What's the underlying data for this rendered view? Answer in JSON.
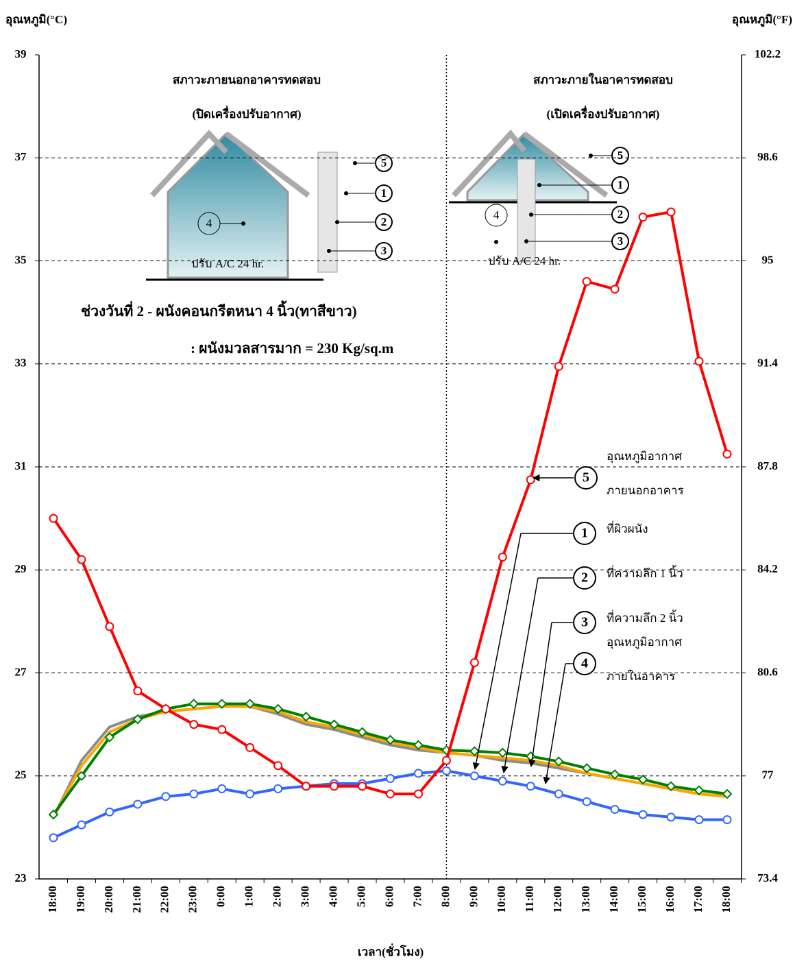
{
  "chart_data": {
    "type": "line",
    "y_label": "อุณหภูมิ(°C)",
    "y2_label": "อุณหภูมิ(°F)",
    "x_label": "เวลา(ชั่วโมง)",
    "categories": [
      "18:00",
      "19:00",
      "20:00",
      "21:00",
      "22:00",
      "23:00",
      "0:00",
      "1:00",
      "2:00",
      "3:00",
      "4:00",
      "5:00",
      "6:00",
      "7:00",
      "8:00",
      "9:00",
      "10:00",
      "11:00",
      "12:00",
      "13:00",
      "14:00",
      "15:00",
      "16:00",
      "17:00",
      "18:00"
    ],
    "ylim": [
      23,
      39
    ],
    "yticks": [
      23,
      25,
      27,
      29,
      31,
      33,
      35,
      37,
      39
    ],
    "y2lim": [
      73.4,
      102.2
    ],
    "y2ticks": [
      73.4,
      77,
      80.6,
      84.2,
      87.8,
      91.4,
      95,
      98.6,
      102.2
    ],
    "grid": true,
    "divider_at": 14,
    "annotations": {
      "left_title": "สภาวะภายนอกอาคารทดสอบ",
      "left_subtitle": "(ปิดเครื่องปรับอากาศ)",
      "right_title": "สภาวะภายในอาคารทดสอบ",
      "right_subtitle": "(เปิดเครื่องปรับอากาศ)",
      "period": "ช่วงวันที่ 2 - ผนังคอนกรีตหนา 4 นิ้ว(ทาสีขาว)",
      "mass": ": ผนังมวลสารมาก = 230 Kg/sq.m",
      "ac_left": "ปรับ A/C 24 hr.",
      "ac_right": "ปรับ A/C 24 hr.",
      "left_numbers": [
        "5",
        "1",
        "2",
        "3",
        "4"
      ],
      "right_numbers": [
        "5",
        "1",
        "2",
        "3",
        "4"
      ]
    },
    "series": [
      {
        "name": [
          "ที่ผิวผนัง"
        ],
        "number": "1",
        "color": "#8c8c8c",
        "marker": "none",
        "values": [
          24.2,
          25.3,
          25.95,
          26.15,
          26.25,
          26.3,
          26.35,
          26.35,
          26.2,
          26.0,
          25.9,
          25.75,
          25.6,
          25.5,
          25.45,
          25.4,
          25.3,
          25.25,
          25.15,
          25.05,
          24.95,
          24.85,
          24.75,
          24.65,
          24.6
        ]
      },
      {
        "name": [
          "ที่ความลึก 1 นิ้ว"
        ],
        "number": "2",
        "color": "#ffa500",
        "marker": "none",
        "values": [
          24.2,
          25.2,
          25.85,
          26.1,
          26.25,
          26.3,
          26.35,
          26.35,
          26.25,
          26.05,
          25.95,
          25.8,
          25.65,
          25.55,
          25.45,
          25.4,
          25.35,
          25.3,
          25.2,
          25.05,
          24.95,
          24.85,
          24.75,
          24.65,
          24.6
        ]
      },
      {
        "name": [
          "ที่ความลึก 2 นิ้ว"
        ],
        "number": "3",
        "color": "#008000",
        "marker": "diamond",
        "values": [
          24.25,
          25.0,
          25.75,
          26.1,
          26.3,
          26.4,
          26.4,
          26.4,
          26.3,
          26.15,
          26.0,
          25.85,
          25.7,
          25.6,
          25.5,
          25.48,
          25.45,
          25.38,
          25.28,
          25.15,
          25.03,
          24.93,
          24.8,
          24.72,
          24.65
        ]
      },
      {
        "name": [
          "อุณหภูมิอากาศ",
          "ภายในอาคาร"
        ],
        "number": "4",
        "color": "#3366ff",
        "marker": "circle",
        "values": [
          23.8,
          24.05,
          24.3,
          24.45,
          24.6,
          24.65,
          24.75,
          24.65,
          24.75,
          24.8,
          24.85,
          24.85,
          24.95,
          25.05,
          25.1,
          25.0,
          24.9,
          24.8,
          24.65,
          24.5,
          24.35,
          24.25,
          24.2,
          24.15,
          24.15
        ]
      },
      {
        "name": [
          "อุณหภูมิอากาศ",
          "ภายนอกอาคาร"
        ],
        "number": "5",
        "color": "#ff0000",
        "marker": "circle",
        "values": [
          30.0,
          29.2,
          27.9,
          26.65,
          26.3,
          26.0,
          25.9,
          25.55,
          25.2,
          24.8,
          24.8,
          24.8,
          24.65,
          24.65,
          25.3,
          27.2,
          29.25,
          30.75,
          32.95,
          34.6,
          34.45,
          35.85,
          35.95,
          33.05,
          31.25
        ]
      }
    ]
  }
}
